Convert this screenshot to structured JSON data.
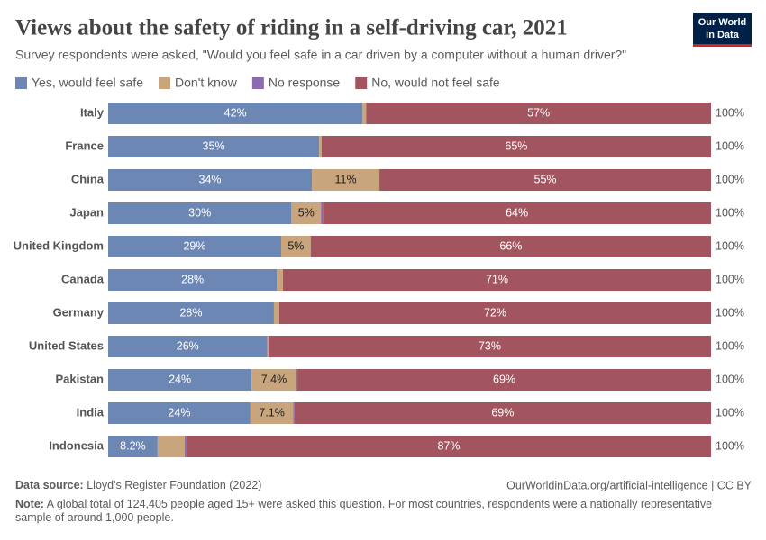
{
  "chart_data": {
    "type": "stacked-bar-horizontal",
    "title": "Views about the safety of riding in a self-driving car, 2021",
    "subtitle": "Survey respondents were asked, \"Would you feel safe in a car driven by a computer without a human driver?\"",
    "logo": [
      "Our World",
      "in Data"
    ],
    "categories": [
      "Italy",
      "France",
      "China",
      "Japan",
      "United Kingdom",
      "Canada",
      "Germany",
      "United States",
      "Pakistan",
      "India",
      "Indonesia"
    ],
    "series": [
      {
        "name": "Yes, would feel safe",
        "color": "#6d87b5",
        "values": [
          42.2,
          35.0,
          33.8,
          30.4,
          28.7,
          28.0,
          27.5,
          26.4,
          23.8,
          23.6,
          8.2
        ],
        "value_labels": [
          "42%",
          "35%",
          "34%",
          "30%",
          "29%",
          "28%",
          "28%",
          "26%",
          "24%",
          "24%",
          "8.2%"
        ]
      },
      {
        "name": "Don't know",
        "color": "#c8a57c",
        "values": [
          0.6,
          0.4,
          11.2,
          4.9,
          4.9,
          1.0,
          0.9,
          0.2,
          7.4,
          7.1,
          4.5
        ],
        "value_labels": [
          null,
          null,
          "11%",
          "5%",
          "5%",
          null,
          null,
          null,
          "7.4%",
          "7.1%",
          null
        ]
      },
      {
        "name": "No response",
        "color": "#8c6bb1",
        "values": [
          0,
          0,
          0,
          0.3,
          0,
          0,
          0,
          0,
          0.2,
          0.2,
          0.3
        ],
        "value_labels": [
          null,
          null,
          null,
          null,
          null,
          null,
          null,
          null,
          null,
          null,
          null
        ]
      },
      {
        "name": "No, would not feel safe",
        "color": "#a2555f",
        "values": [
          57.2,
          64.6,
          55.0,
          64.4,
          66.4,
          71.0,
          71.6,
          73.4,
          68.6,
          69.1,
          87.0
        ],
        "value_labels": [
          "57%",
          "65%",
          "55%",
          "64%",
          "66%",
          "71%",
          "72%",
          "73%",
          "69%",
          "69%",
          "87%"
        ]
      }
    ],
    "totals": [
      100,
      100,
      100,
      100,
      100,
      100,
      100,
      100,
      100,
      100,
      100
    ],
    "total_labels": [
      "100%",
      "100%",
      "100%",
      "100%",
      "100%",
      "100%",
      "100%",
      "100%",
      "100%",
      "100%",
      "100%"
    ],
    "xlim": [
      0,
      100
    ],
    "source_label": "Data source:",
    "source": "Lloyd's Register Foundation (2022)",
    "url": "OurWorldinData.org/artificial-intelligence | CC BY",
    "note_label": "Note:",
    "note": "A global total of 124,405 people aged 15+ were asked this question. For most countries, respondents were a nationally representative sample of around 1,000 people."
  }
}
